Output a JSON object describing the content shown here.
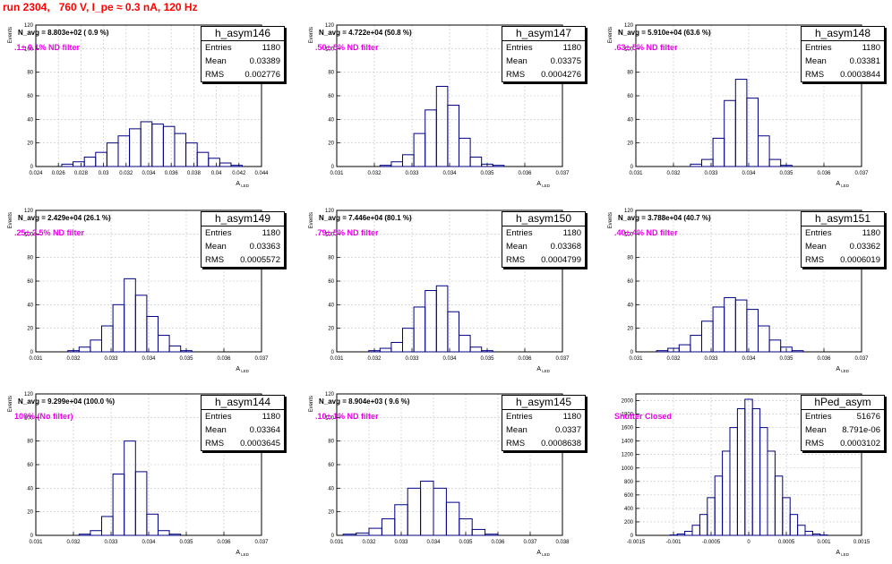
{
  "title": "run 2304,   760 V, I_pe ≈ 0.3 nA, 120 Hz",
  "colors": {
    "hist": "#000080",
    "title": "#ff0000",
    "annot": "#ee00ee",
    "grid": "#c0c0c0"
  },
  "chart_data": [
    {
      "type": "bar",
      "name": "h_asym146",
      "stats": {
        "entries": "1180",
        "mean": "0.03389",
        "rms": "0.002776"
      },
      "annotation": "N_avg = 8.803e+02 ( 0.9 %)",
      "filter": ".1± 0.1% ND filter",
      "xlabel": "A_LED",
      "ylabel": "Events",
      "xlim": [
        0.024,
        0.044
      ],
      "ylim": [
        0,
        120
      ],
      "xticks": [
        "0.024",
        "0.026",
        "0.028",
        "0.03",
        "0.032",
        "0.034",
        "0.036",
        "0.038",
        "0.04",
        "0.042",
        "0.044"
      ],
      "yticks": [
        0,
        20,
        40,
        60,
        80,
        100,
        120
      ],
      "x": [
        0.0268,
        0.0278,
        0.0288,
        0.0298,
        0.0308,
        0.0318,
        0.0328,
        0.0338,
        0.0348,
        0.0358,
        0.0368,
        0.0378,
        0.0388,
        0.0398,
        0.0408,
        0.0418
      ],
      "values": [
        2,
        4,
        8,
        12,
        20,
        26,
        32,
        38,
        36,
        34,
        28,
        20,
        12,
        7,
        3,
        1
      ]
    },
    {
      "type": "bar",
      "name": "h_asym147",
      "stats": {
        "entries": "1180",
        "mean": "0.03375",
        "rms": "0.0004276"
      },
      "annotation": "N_avg = 4.722e+04 (50.8 %)",
      "filter": ".50± 5% ND filter",
      "xlabel": "A_LED",
      "ylabel": "Events",
      "xlim": [
        0.031,
        0.037
      ],
      "ylim": [
        0,
        120
      ],
      "xticks": [
        "0.031",
        "0.032",
        "0.033",
        "0.034",
        "0.035",
        "0.036",
        "0.037"
      ],
      "yticks": [
        0,
        20,
        40,
        60,
        80,
        100,
        120
      ],
      "x": [
        0.0323,
        0.0326,
        0.0329,
        0.0332,
        0.0335,
        0.0338,
        0.0341,
        0.0344,
        0.0347,
        0.035,
        0.0353
      ],
      "values": [
        1,
        4,
        10,
        28,
        48,
        68,
        52,
        24,
        8,
        2,
        1
      ]
    },
    {
      "type": "bar",
      "name": "h_asym148",
      "stats": {
        "entries": "1180",
        "mean": "0.03381",
        "rms": "0.0003844"
      },
      "annotation": "N_avg = 5.910e+04 (63.6 %)",
      "filter": ".63± 5% ND filter",
      "xlabel": "A_LED",
      "ylabel": "Events",
      "xlim": [
        0.031,
        0.037
      ],
      "ylim": [
        0,
        120
      ],
      "xticks": [
        "0.031",
        "0.032",
        "0.033",
        "0.034",
        "0.035",
        "0.036",
        "0.037"
      ],
      "yticks": [
        0,
        20,
        40,
        60,
        80,
        100,
        120
      ],
      "x": [
        0.0326,
        0.0329,
        0.0332,
        0.0335,
        0.0338,
        0.0341,
        0.0344,
        0.0347,
        0.035
      ],
      "values": [
        2,
        6,
        24,
        56,
        74,
        58,
        26,
        6,
        1
      ]
    },
    {
      "type": "bar",
      "name": "h_asym149",
      "stats": {
        "entries": "1180",
        "mean": "0.03363",
        "rms": "0.0005572"
      },
      "annotation": "N_avg = 2.429e+04 (26.1 %)",
      "filter": ".25± 2.5% ND filter",
      "xlabel": "A_LED",
      "ylabel": "Events",
      "xlim": [
        0.031,
        0.037
      ],
      "ylim": [
        0,
        120
      ],
      "xticks": [
        "0.031",
        "0.032",
        "0.033",
        "0.034",
        "0.035",
        "0.036",
        "0.037"
      ],
      "yticks": [
        0,
        20,
        40,
        60,
        80,
        100,
        120
      ],
      "x": [
        0.032,
        0.0323,
        0.0326,
        0.0329,
        0.0332,
        0.0335,
        0.0338,
        0.0341,
        0.0344,
        0.0347,
        0.035
      ],
      "values": [
        1,
        4,
        10,
        22,
        40,
        62,
        48,
        30,
        14,
        5,
        1
      ]
    },
    {
      "type": "bar",
      "name": "h_asym150",
      "stats": {
        "entries": "1180",
        "mean": "0.03368",
        "rms": "0.0004799"
      },
      "annotation": "N_avg = 7.446e+04 (80.1 %)",
      "filter": ".79± 5% ND filter",
      "xlabel": "A_LED",
      "ylabel": "Events",
      "xlim": [
        0.031,
        0.037
      ],
      "ylim": [
        0,
        120
      ],
      "xticks": [
        "0.031",
        "0.032",
        "0.033",
        "0.034",
        "0.035",
        "0.036",
        "0.037"
      ],
      "yticks": [
        0,
        20,
        40,
        60,
        80,
        100,
        120
      ],
      "x": [
        0.032,
        0.0323,
        0.0326,
        0.0329,
        0.0332,
        0.0335,
        0.0338,
        0.0341,
        0.0344,
        0.0347,
        0.035
      ],
      "values": [
        1,
        3,
        8,
        20,
        38,
        52,
        56,
        34,
        14,
        4,
        1
      ]
    },
    {
      "type": "bar",
      "name": "h_asym151",
      "stats": {
        "entries": "1180",
        "mean": "0.03362",
        "rms": "0.0006019"
      },
      "annotation": "N_avg = 3.788e+04 (40.7 %)",
      "filter": ".40± 4% ND filter",
      "xlabel": "A_LED",
      "ylabel": "Events",
      "xlim": [
        0.031,
        0.037
      ],
      "ylim": [
        0,
        120
      ],
      "xticks": [
        "0.031",
        "0.032",
        "0.033",
        "0.034",
        "0.035",
        "0.036",
        "0.037"
      ],
      "yticks": [
        0,
        20,
        40,
        60,
        80,
        100,
        120
      ],
      "x": [
        0.0317,
        0.032,
        0.0323,
        0.0326,
        0.0329,
        0.0332,
        0.0335,
        0.0338,
        0.0341,
        0.0344,
        0.0347,
        0.035,
        0.0353
      ],
      "values": [
        1,
        3,
        6,
        14,
        26,
        38,
        46,
        44,
        36,
        22,
        10,
        4,
        1
      ]
    },
    {
      "type": "bar",
      "name": "h_asym144",
      "stats": {
        "entries": "1180",
        "mean": "0.03364",
        "rms": "0.0003645"
      },
      "annotation": "N_avg = 9.299e+04 (100.0 %)",
      "filter": "100% (No filter)",
      "xlabel": "A_LED",
      "ylabel": "Events",
      "xlim": [
        0.031,
        0.037
      ],
      "ylim": [
        0,
        120
      ],
      "xticks": [
        "0.031",
        "0.032",
        "0.033",
        "0.034",
        "0.035",
        "0.036",
        "0.037"
      ],
      "yticks": [
        0,
        20,
        40,
        60,
        80,
        100,
        120
      ],
      "x": [
        0.0323,
        0.0326,
        0.0329,
        0.0332,
        0.0335,
        0.0338,
        0.0341,
        0.0344,
        0.0347
      ],
      "values": [
        1,
        4,
        16,
        52,
        80,
        54,
        18,
        4,
        1
      ]
    },
    {
      "type": "bar",
      "name": "h_asym145",
      "stats": {
        "entries": "1180",
        "mean": "0.0337",
        "rms": "0.0008638"
      },
      "annotation": "N_avg = 8.904e+03 ( 9.6 %)",
      "filter": ".10± 1% ND filter",
      "xlabel": "A_LED",
      "ylabel": "Events",
      "xlim": [
        0.031,
        0.038
      ],
      "ylim": [
        0,
        120
      ],
      "xticks": [
        "0.031",
        "0.032",
        "0.033",
        "0.034",
        "0.035",
        "0.036",
        "0.037",
        "0.038"
      ],
      "yticks": [
        0,
        20,
        40,
        60,
        80,
        100,
        120
      ],
      "x": [
        0.0314,
        0.0318,
        0.0322,
        0.0326,
        0.033,
        0.0334,
        0.0338,
        0.0342,
        0.0346,
        0.035,
        0.0354,
        0.0358
      ],
      "values": [
        1,
        2,
        6,
        14,
        26,
        40,
        46,
        40,
        28,
        14,
        5,
        1
      ]
    },
    {
      "type": "bar",
      "name": "hPed_asym",
      "stats": {
        "entries": "51676",
        "mean": "8.791e-06",
        "rms": "0.0003102"
      },
      "annotation": "",
      "filter": "Shutter Closed",
      "xlabel": "A_LED",
      "ylabel": "",
      "xlim": [
        -0.0015,
        0.0015
      ],
      "ylim": [
        0,
        2100
      ],
      "xticks": [
        "-0.0015",
        "-0.001",
        "-0.0005",
        "0",
        "0.0005",
        "0.001",
        "0.0015"
      ],
      "yticks": [
        0,
        200,
        400,
        600,
        800,
        1000,
        1200,
        1400,
        1600,
        1800,
        2000
      ],
      "x": [
        -0.001,
        -0.0009,
        -0.0008,
        -0.0007,
        -0.0006,
        -0.0005,
        -0.0004,
        -0.0003,
        -0.0002,
        -0.0001,
        0.0,
        0.0001,
        0.0002,
        0.0003,
        0.0004,
        0.0005,
        0.0006,
        0.0007,
        0.0008,
        0.0009,
        0.001
      ],
      "values": [
        5,
        20,
        60,
        150,
        310,
        560,
        880,
        1250,
        1600,
        1880,
        2020,
        1880,
        1600,
        1250,
        880,
        560,
        310,
        150,
        60,
        20,
        5
      ]
    }
  ]
}
